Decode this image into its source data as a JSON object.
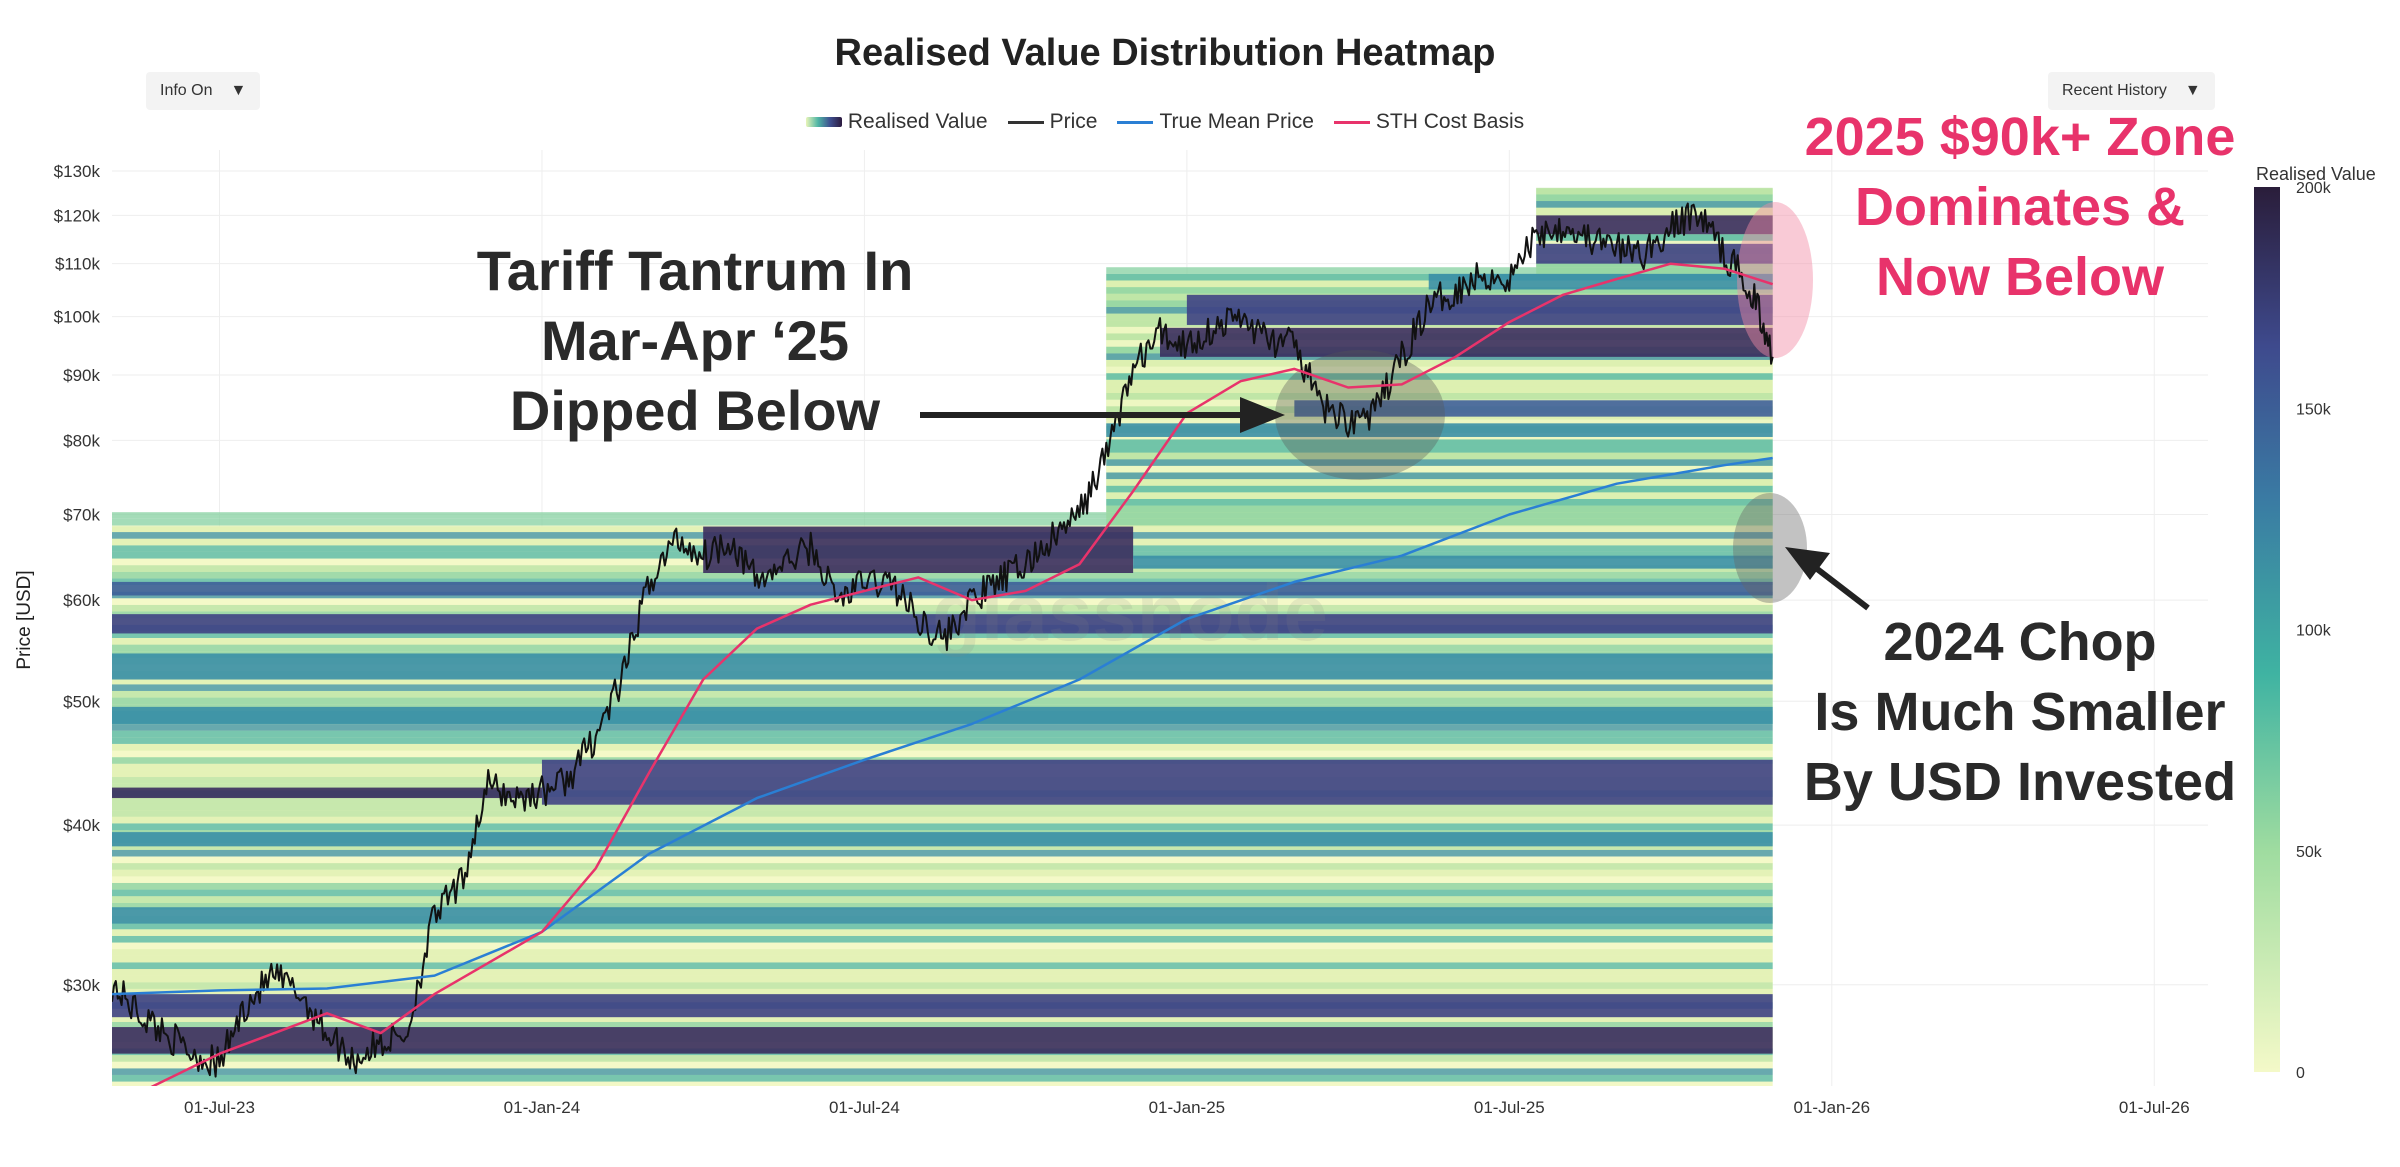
{
  "title": "Realised Value Distribution Heatmap",
  "controls": {
    "info_label": "Info On",
    "history_label": "Recent History",
    "arrow": "▼"
  },
  "legend": [
    {
      "label": "Realised Value",
      "kind": "gradient"
    },
    {
      "label": "Price",
      "kind": "line",
      "color": "#333333"
    },
    {
      "label": "True Mean Price",
      "kind": "line",
      "color": "#2a7fd4"
    },
    {
      "label": "STH Cost Basis",
      "kind": "line",
      "color": "#e8336b"
    }
  ],
  "watermark": "glassnode",
  "annotations": {
    "tariff": [
      "Tariff Tantrum In",
      "Mar-Apr ‘25",
      "Dipped Below"
    ],
    "zone": [
      "2025 $90k+ Zone",
      "Dominates &",
      "Now Below"
    ],
    "chop": [
      "2024 Chop",
      "Is Much Smaller",
      "By USD Invested"
    ]
  },
  "colors": {
    "price": "#111111",
    "true_mean": "#2a7fd4",
    "sth": "#e8336b",
    "zone_text": "#e8336b",
    "annotation_text": "#2a2a2a"
  },
  "chart_data": {
    "type": "heatmap",
    "title": "Realised Value Distribution Heatmap",
    "ylabel": "Price [USD]",
    "xlabel": "",
    "yscale": "log",
    "ylim": [
      25000,
      135000
    ],
    "xlim": [
      "2023-05-01",
      "2026-08-01"
    ],
    "y_ticks": [
      {
        "label": "$30k",
        "v": 30000
      },
      {
        "label": "$40k",
        "v": 40000
      },
      {
        "label": "$50k",
        "v": 50000
      },
      {
        "label": "$60k",
        "v": 60000
      },
      {
        "label": "$70k",
        "v": 70000
      },
      {
        "label": "$80k",
        "v": 80000
      },
      {
        "label": "$90k",
        "v": 90000
      },
      {
        "label": "$100k",
        "v": 100000
      },
      {
        "label": "$110k",
        "v": 110000
      },
      {
        "label": "$120k",
        "v": 120000
      },
      {
        "label": "$130k",
        "v": 130000
      }
    ],
    "x_ticks": [
      {
        "label": "01-Jul-23",
        "t": 2
      },
      {
        "label": "01-Jan-24",
        "t": 8
      },
      {
        "label": "01-Jul-24",
        "t": 14
      },
      {
        "label": "01-Jan-25",
        "t": 20
      },
      {
        "label": "01-Jul-25",
        "t": 26
      },
      {
        "label": "01-Jan-26",
        "t": 32
      },
      {
        "label": "01-Jul-26",
        "t": 38
      }
    ],
    "colorbar": {
      "label": "Realised Value",
      "ticks": [
        "0",
        "50k",
        "100k",
        "150k",
        "200k"
      ],
      "range": [
        0,
        200000
      ]
    },
    "series": [
      {
        "name": "Price",
        "color": "#111111",
        "points": [
          [
            0,
            30000
          ],
          [
            0.5,
            28500
          ],
          [
            1,
            27500
          ],
          [
            1.5,
            26500
          ],
          [
            2,
            26000
          ],
          [
            2.5,
            29000
          ],
          [
            3,
            30500
          ],
          [
            3.5,
            29500
          ],
          [
            4,
            27500
          ],
          [
            4.5,
            26200
          ],
          [
            5,
            27000
          ],
          [
            5.5,
            27500
          ],
          [
            6,
            34000
          ],
          [
            6.5,
            36000
          ],
          [
            7,
            43000
          ],
          [
            7.5,
            42000
          ],
          [
            8,
            42500
          ],
          [
            8.5,
            43500
          ],
          [
            9,
            47000
          ],
          [
            9.5,
            52000
          ],
          [
            10,
            62000
          ],
          [
            10.5,
            67000
          ],
          [
            11,
            65000
          ],
          [
            11.5,
            67000
          ],
          [
            12,
            62000
          ],
          [
            12.5,
            64000
          ],
          [
            13,
            66000
          ],
          [
            13.5,
            60000
          ],
          [
            14,
            62000
          ],
          [
            14.5,
            62000
          ],
          [
            15,
            58000
          ],
          [
            15.5,
            56000
          ],
          [
            16,
            60000
          ],
          [
            16.5,
            62000
          ],
          [
            17,
            64000
          ],
          [
            17.5,
            67000
          ],
          [
            18,
            70000
          ],
          [
            18.5,
            78000
          ],
          [
            19,
            91000
          ],
          [
            19.5,
            97000
          ],
          [
            20,
            95000
          ],
          [
            20.5,
            98000
          ],
          [
            21,
            100000
          ],
          [
            21.5,
            96000
          ],
          [
            22,
            95000
          ],
          [
            22.5,
            85000
          ],
          [
            23,
            83000
          ],
          [
            23.5,
            84000
          ],
          [
            24,
            93000
          ],
          [
            24.5,
            102000
          ],
          [
            25,
            105000
          ],
          [
            25.5,
            108000
          ],
          [
            26,
            107000
          ],
          [
            26.5,
            116000
          ],
          [
            27,
            118000
          ],
          [
            27.5,
            115000
          ],
          [
            28,
            113000
          ],
          [
            28.5,
            112000
          ],
          [
            29,
            117000
          ],
          [
            29.5,
            121000
          ],
          [
            30,
            112000
          ],
          [
            30.5,
            105000
          ],
          [
            30.9,
            93000
          ]
        ]
      },
      {
        "name": "True Mean Price",
        "color": "#2a7fd4",
        "points": [
          [
            0,
            29500
          ],
          [
            2,
            29700
          ],
          [
            4,
            29800
          ],
          [
            6,
            30500
          ],
          [
            8,
            33000
          ],
          [
            10,
            38000
          ],
          [
            12,
            42000
          ],
          [
            14,
            45000
          ],
          [
            16,
            48000
          ],
          [
            18,
            52000
          ],
          [
            20,
            58000
          ],
          [
            22,
            62000
          ],
          [
            24,
            65000
          ],
          [
            26,
            70000
          ],
          [
            28,
            74000
          ],
          [
            30,
            76500
          ],
          [
            30.9,
            77500
          ]
        ]
      },
      {
        "name": "STH Cost Basis",
        "color": "#e8336b",
        "points": [
          [
            0.6,
            24800
          ],
          [
            2,
            26500
          ],
          [
            4,
            28500
          ],
          [
            5,
            27500
          ],
          [
            6,
            29500
          ],
          [
            8,
            33000
          ],
          [
            9,
            37000
          ],
          [
            10,
            44000
          ],
          [
            11,
            52000
          ],
          [
            12,
            57000
          ],
          [
            13,
            59500
          ],
          [
            14,
            61000
          ],
          [
            15,
            62500
          ],
          [
            16,
            60000
          ],
          [
            17,
            61000
          ],
          [
            18,
            64000
          ],
          [
            19,
            73000
          ],
          [
            20,
            84000
          ],
          [
            21,
            89000
          ],
          [
            22,
            91000
          ],
          [
            23,
            88000
          ],
          [
            24,
            88500
          ],
          [
            25,
            93000
          ],
          [
            26,
            99000
          ],
          [
            27,
            104000
          ],
          [
            28,
            107000
          ],
          [
            29,
            110000
          ],
          [
            30,
            109000
          ],
          [
            30.9,
            106000
          ]
        ]
      }
    ],
    "heat_bands": [
      {
        "y0": 26500,
        "y1": 27800,
        "t0": 0,
        "t1": 30.9,
        "level": 0.88
      },
      {
        "y0": 28300,
        "y1": 29500,
        "t0": 0,
        "t1": 30.9,
        "level": 0.75
      },
      {
        "y0": 33500,
        "y1": 34500,
        "t0": 0,
        "t1": 30.9,
        "level": 0.55
      },
      {
        "y0": 38500,
        "y1": 39500,
        "t0": 0,
        "t1": 30.9,
        "level": 0.6
      },
      {
        "y0": 41500,
        "y1": 45000,
        "t0": 8,
        "t1": 30.9,
        "level": 0.82
      },
      {
        "y0": 42000,
        "y1": 42800,
        "t0": 0,
        "t1": 8,
        "level": 0.85
      },
      {
        "y0": 48000,
        "y1": 49500,
        "t0": 0,
        "t1": 30.9,
        "level": 0.5
      },
      {
        "y0": 52000,
        "y1": 54500,
        "t0": 0,
        "t1": 30.9,
        "level": 0.55
      },
      {
        "y0": 56500,
        "y1": 58500,
        "t0": 0,
        "t1": 30.9,
        "level": 0.8
      },
      {
        "y0": 60500,
        "y1": 62000,
        "t0": 0,
        "t1": 30.9,
        "level": 0.7
      },
      {
        "y0": 63000,
        "y1": 68500,
        "t0": 11,
        "t1": 19,
        "level": 0.9
      },
      {
        "y0": 63500,
        "y1": 65000,
        "t0": 19,
        "t1": 30.9,
        "level": 0.55
      },
      {
        "y0": 80500,
        "y1": 82500,
        "t0": 18.5,
        "t1": 30.9,
        "level": 0.5
      },
      {
        "y0": 83500,
        "y1": 86000,
        "t0": 22,
        "t1": 30.9,
        "level": 0.65
      },
      {
        "y0": 93000,
        "y1": 98000,
        "t0": 19.5,
        "t1": 30.9,
        "level": 0.88
      },
      {
        "y0": 98500,
        "y1": 104000,
        "t0": 20,
        "t1": 30.9,
        "level": 0.8
      },
      {
        "y0": 105000,
        "y1": 108000,
        "t0": 24.5,
        "t1": 30.9,
        "level": 0.6
      },
      {
        "y0": 110000,
        "y1": 114000,
        "t0": 26.5,
        "t1": 30.9,
        "level": 0.78
      },
      {
        "y0": 116000,
        "y1": 120000,
        "t0": 26.5,
        "t1": 30.9,
        "level": 0.85
      }
    ]
  }
}
